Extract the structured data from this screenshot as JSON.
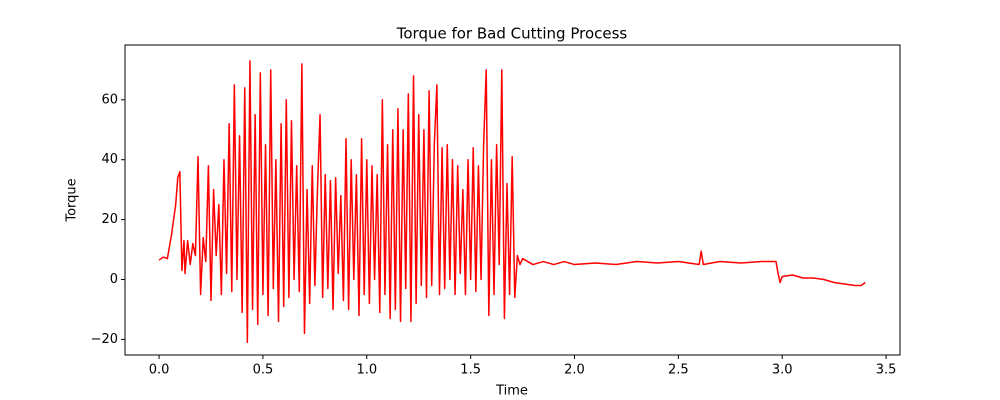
{
  "chart_data": {
    "type": "line",
    "title": "Torque for Bad Cutting Process",
    "xlabel": "Time",
    "ylabel": "Torque",
    "color": "#ff0000",
    "x": [
      0,
      0.02,
      0.04,
      0.06,
      0.08,
      0.09,
      0.1,
      0.11,
      0.12,
      0.125,
      0.1375,
      0.15,
      0.1625,
      0.175,
      0.1875,
      0.2,
      0.2125,
      0.225,
      0.2375,
      0.25,
      0.2625,
      0.275,
      0.2875,
      0.3,
      0.3125,
      0.325,
      0.3375,
      0.35,
      0.3625,
      0.375,
      0.3875,
      0.4,
      0.4125,
      0.425,
      0.4375,
      0.45,
      0.4625,
      0.475,
      0.4875,
      0.5,
      0.5125,
      0.525,
      0.5375,
      0.55,
      0.5625,
      0.575,
      0.5875,
      0.6,
      0.6125,
      0.625,
      0.6375,
      0.65,
      0.6625,
      0.675,
      0.6875,
      0.7,
      0.7125,
      0.725,
      0.7375,
      0.75,
      0.7625,
      0.775,
      0.7875,
      0.8,
      0.8125,
      0.825,
      0.8375,
      0.85,
      0.8625,
      0.875,
      0.8875,
      0.9,
      0.9125,
      0.925,
      0.9375,
      0.95,
      0.9625,
      0.975,
      0.9875,
      1.0,
      1.0125,
      1.025,
      1.0375,
      1.05,
      1.0625,
      1.075,
      1.0875,
      1.1,
      1.1125,
      1.125,
      1.1375,
      1.15,
      1.1625,
      1.175,
      1.1875,
      1.2,
      1.2125,
      1.225,
      1.2375,
      1.25,
      1.2625,
      1.275,
      1.2875,
      1.3,
      1.3125,
      1.325,
      1.3375,
      1.35,
      1.3625,
      1.375,
      1.3875,
      1.4,
      1.4125,
      1.425,
      1.4375,
      1.45,
      1.4625,
      1.475,
      1.4875,
      1.5,
      1.5125,
      1.525,
      1.5375,
      1.55,
      1.5625,
      1.575,
      1.5875,
      1.6,
      1.6125,
      1.625,
      1.6375,
      1.65,
      1.6625,
      1.675,
      1.6875,
      1.7,
      1.7125,
      1.725,
      1.7375,
      1.75,
      1.8,
      1.85,
      1.9,
      1.95,
      2.0,
      2.1,
      2.2,
      2.3,
      2.4,
      2.5,
      2.6,
      2.61,
      2.62,
      2.7,
      2.8,
      2.9,
      2.97,
      2.98,
      2.99,
      3.0,
      3.05,
      3.1,
      3.15,
      3.2,
      3.25,
      3.3,
      3.35,
      3.38,
      3.4
    ],
    "values": [
      6.5,
      7.5,
      7,
      15,
      25,
      34,
      36,
      3,
      13,
      2,
      13,
      5,
      12,
      8,
      41,
      -5,
      14,
      6,
      38,
      -7,
      30,
      8,
      25,
      -5,
      40,
      2,
      52,
      -4,
      65,
      0,
      48,
      -11,
      64,
      -21,
      73,
      -10,
      55,
      -15,
      69,
      -5,
      45,
      -12,
      70,
      -3,
      40,
      -14,
      52,
      -9,
      60,
      -6,
      53,
      0,
      38,
      -4,
      72,
      -18,
      30,
      -8,
      38,
      -2,
      30,
      55,
      -6,
      35,
      -3,
      33,
      -10,
      34,
      2,
      28,
      -7,
      47,
      -10,
      40,
      0,
      35,
      -12,
      47,
      -5,
      40,
      -8,
      38,
      0,
      35,
      -11,
      60,
      -5,
      45,
      -13,
      50,
      -10,
      57,
      -14,
      50,
      -3,
      62,
      -14,
      68,
      -8,
      55,
      -2,
      50,
      -6,
      63,
      -2,
      45,
      65,
      -5,
      44,
      -3,
      45,
      0,
      40,
      -5,
      38,
      2,
      30,
      -5,
      40,
      0,
      44,
      -4,
      38,
      0,
      45,
      70,
      -12,
      40,
      -5,
      45,
      5,
      70,
      -13,
      32,
      -5,
      41,
      -6,
      8,
      5,
      7,
      5,
      6,
      5,
      6,
      5,
      5.5,
      5,
      6,
      5.5,
      6,
      5,
      9.5,
      5,
      6,
      5.5,
      6,
      6,
      2,
      -1,
      1,
      1.5,
      0.5,
      0.5,
      0,
      -1,
      -1.5,
      -2,
      -2,
      -1
    ],
    "xlim": [
      -0.164,
      3.567
    ],
    "ylim": [
      -25.2,
      78.3
    ],
    "xticks": [
      {
        "value": 0,
        "label": "0.0"
      },
      {
        "value": 0.5,
        "label": "0.5"
      },
      {
        "value": 1,
        "label": "1.0"
      },
      {
        "value": 1.5,
        "label": "1.5"
      },
      {
        "value": 2,
        "label": "2.0"
      },
      {
        "value": 2.5,
        "label": "2.5"
      },
      {
        "value": 3,
        "label": "3.0"
      },
      {
        "value": 3.5,
        "label": "3.5"
      }
    ],
    "yticks": [
      {
        "value": -20,
        "label": "−20"
      },
      0,
      20,
      40,
      60
    ]
  }
}
